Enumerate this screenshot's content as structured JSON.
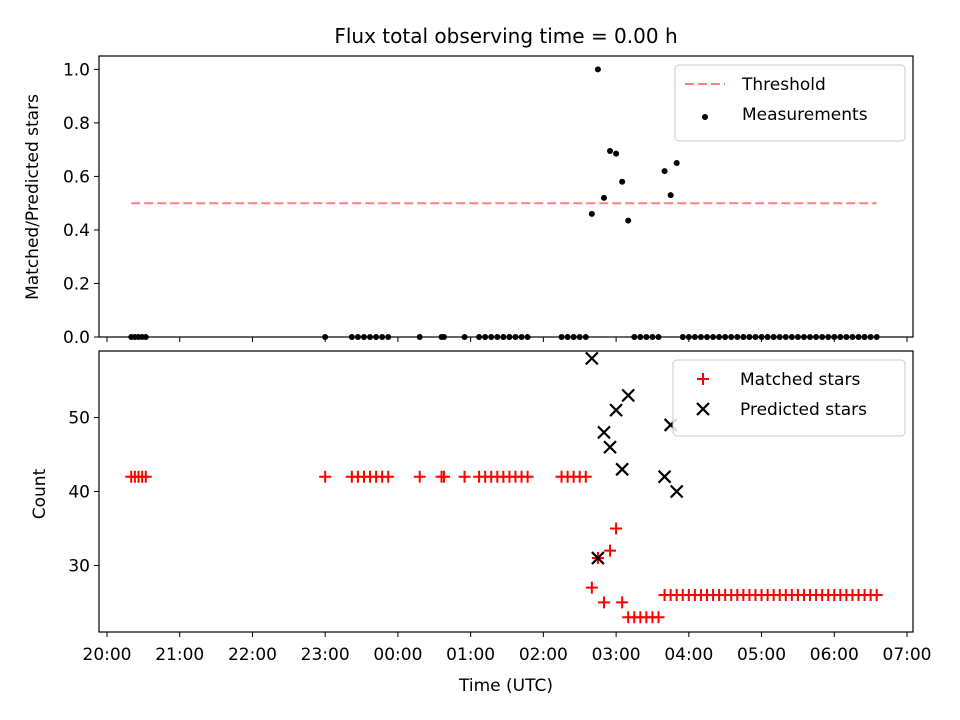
{
  "chart_data": [
    {
      "type": "scatter",
      "title": "Flux total observing time = 0.00 h",
      "xlabel": "",
      "ylabel": "Matched/Predicted stars",
      "xlim": [
        "20:00",
        "07:00"
      ],
      "ylim": [
        0,
        1.05
      ],
      "yticks": [
        "0.0",
        "0.2",
        "0.4",
        "0.6",
        "0.8",
        "1.0"
      ],
      "legend_position": "top-right",
      "threshold": {
        "name": "Threshold",
        "value": 0.5,
        "x_start": "20:20",
        "x_end": "06:35",
        "color": "#ff7f7f",
        "style": "dashed"
      },
      "series": [
        {
          "name": "Measurements",
          "color": "#000000",
          "marker": "dot",
          "points": [
            [
              "20:20",
              0.0
            ],
            [
              "20:23",
              0.0
            ],
            [
              "20:26",
              0.0
            ],
            [
              "20:29",
              0.0
            ],
            [
              "20:32",
              0.0
            ],
            [
              "23:00",
              0.0
            ],
            [
              "23:22",
              0.0
            ],
            [
              "23:27",
              0.0
            ],
            [
              "23:32",
              0.0
            ],
            [
              "23:37",
              0.0
            ],
            [
              "23:42",
              0.0
            ],
            [
              "23:47",
              0.0
            ],
            [
              "23:52",
              0.0
            ],
            [
              "00:18",
              0.0
            ],
            [
              "00:36",
              0.0
            ],
            [
              "00:38",
              0.0
            ],
            [
              "00:55",
              0.0
            ],
            [
              "01:07",
              0.0
            ],
            [
              "01:12",
              0.0
            ],
            [
              "01:17",
              0.0
            ],
            [
              "01:22",
              0.0
            ],
            [
              "01:27",
              0.0
            ],
            [
              "01:32",
              0.0
            ],
            [
              "01:37",
              0.0
            ],
            [
              "01:42",
              0.0
            ],
            [
              "01:47",
              0.0
            ],
            [
              "02:15",
              0.0
            ],
            [
              "02:20",
              0.0
            ],
            [
              "02:25",
              0.0
            ],
            [
              "02:30",
              0.0
            ],
            [
              "02:35",
              0.0
            ],
            [
              "02:40",
              0.46
            ],
            [
              "02:45",
              1.0
            ],
            [
              "02:50",
              0.52
            ],
            [
              "02:55",
              0.695
            ],
            [
              "03:00",
              0.685
            ],
            [
              "03:05",
              0.58
            ],
            [
              "03:10",
              0.435
            ],
            [
              "03:15",
              0.0
            ],
            [
              "03:20",
              0.0
            ],
            [
              "03:25",
              0.0
            ],
            [
              "03:30",
              0.0
            ],
            [
              "03:35",
              0.0
            ],
            [
              "03:40",
              0.62
            ],
            [
              "03:45",
              0.53
            ],
            [
              "03:50",
              0.65
            ],
            [
              "03:55",
              0.0
            ],
            [
              "04:00",
              0.0
            ],
            [
              "04:05",
              0.0
            ],
            [
              "04:10",
              0.0
            ],
            [
              "04:15",
              0.0
            ],
            [
              "04:20",
              0.0
            ],
            [
              "04:25",
              0.0
            ],
            [
              "04:30",
              0.0
            ],
            [
              "04:35",
              0.0
            ],
            [
              "04:40",
              0.0
            ],
            [
              "04:45",
              0.0
            ],
            [
              "04:50",
              0.0
            ],
            [
              "04:55",
              0.0
            ],
            [
              "05:00",
              0.0
            ],
            [
              "05:05",
              0.0
            ],
            [
              "05:10",
              0.0
            ],
            [
              "05:15",
              0.0
            ],
            [
              "05:20",
              0.0
            ],
            [
              "05:25",
              0.0
            ],
            [
              "05:30",
              0.0
            ],
            [
              "05:35",
              0.0
            ],
            [
              "05:40",
              0.0
            ],
            [
              "05:45",
              0.0
            ],
            [
              "05:50",
              0.0
            ],
            [
              "05:55",
              0.0
            ],
            [
              "06:00",
              0.0
            ],
            [
              "06:05",
              0.0
            ],
            [
              "06:10",
              0.0
            ],
            [
              "06:15",
              0.0
            ],
            [
              "06:20",
              0.0
            ],
            [
              "06:25",
              0.0
            ],
            [
              "06:30",
              0.0
            ],
            [
              "06:35",
              0.0
            ]
          ]
        }
      ]
    },
    {
      "type": "scatter",
      "title": "",
      "xlabel": "Time (UTC)",
      "ylabel": "Count",
      "xlim": [
        "20:00",
        "07:00"
      ],
      "ylim": [
        21,
        59
      ],
      "yticks": [
        "30",
        "40",
        "50"
      ],
      "xticks": [
        "20:00",
        "21:00",
        "22:00",
        "23:00",
        "00:00",
        "01:00",
        "02:00",
        "03:00",
        "04:00",
        "05:00",
        "06:00",
        "07:00"
      ],
      "legend_position": "top-right",
      "series": [
        {
          "name": "Matched stars",
          "color": "#ff0000",
          "marker": "plus",
          "points": [
            [
              "20:20",
              42
            ],
            [
              "20:23",
              42
            ],
            [
              "20:26",
              42
            ],
            [
              "20:29",
              42
            ],
            [
              "20:32",
              42
            ],
            [
              "23:00",
              42
            ],
            [
              "23:22",
              42
            ],
            [
              "23:27",
              42
            ],
            [
              "23:32",
              42
            ],
            [
              "23:37",
              42
            ],
            [
              "23:42",
              42
            ],
            [
              "23:47",
              42
            ],
            [
              "23:52",
              42
            ],
            [
              "00:18",
              42
            ],
            [
              "00:36",
              42
            ],
            [
              "00:38",
              42
            ],
            [
              "00:55",
              42
            ],
            [
              "01:07",
              42
            ],
            [
              "01:12",
              42
            ],
            [
              "01:17",
              42
            ],
            [
              "01:22",
              42
            ],
            [
              "01:27",
              42
            ],
            [
              "01:32",
              42
            ],
            [
              "01:37",
              42
            ],
            [
              "01:42",
              42
            ],
            [
              "01:47",
              42
            ],
            [
              "02:15",
              42
            ],
            [
              "02:20",
              42
            ],
            [
              "02:25",
              42
            ],
            [
              "02:30",
              42
            ],
            [
              "02:35",
              42
            ],
            [
              "02:40",
              27
            ],
            [
              "02:45",
              31
            ],
            [
              "02:50",
              25
            ],
            [
              "02:55",
              32
            ],
            [
              "03:00",
              35
            ],
            [
              "03:05",
              25
            ],
            [
              "03:10",
              23
            ],
            [
              "03:15",
              23
            ],
            [
              "03:20",
              23
            ],
            [
              "03:25",
              23
            ],
            [
              "03:30",
              23
            ],
            [
              "03:35",
              23
            ],
            [
              "03:40",
              26
            ],
            [
              "03:45",
              26
            ],
            [
              "03:50",
              26
            ],
            [
              "03:55",
              26
            ],
            [
              "04:00",
              26
            ],
            [
              "04:05",
              26
            ],
            [
              "04:10",
              26
            ],
            [
              "04:15",
              26
            ],
            [
              "04:20",
              26
            ],
            [
              "04:25",
              26
            ],
            [
              "04:30",
              26
            ],
            [
              "04:35",
              26
            ],
            [
              "04:40",
              26
            ],
            [
              "04:45",
              26
            ],
            [
              "04:50",
              26
            ],
            [
              "04:55",
              26
            ],
            [
              "05:00",
              26
            ],
            [
              "05:05",
              26
            ],
            [
              "05:10",
              26
            ],
            [
              "05:15",
              26
            ],
            [
              "05:20",
              26
            ],
            [
              "05:25",
              26
            ],
            [
              "05:30",
              26
            ],
            [
              "05:35",
              26
            ],
            [
              "05:40",
              26
            ],
            [
              "05:45",
              26
            ],
            [
              "05:50",
              26
            ],
            [
              "05:55",
              26
            ],
            [
              "06:00",
              26
            ],
            [
              "06:05",
              26
            ],
            [
              "06:10",
              26
            ],
            [
              "06:15",
              26
            ],
            [
              "06:20",
              26
            ],
            [
              "06:25",
              26
            ],
            [
              "06:30",
              26
            ],
            [
              "06:35",
              26
            ]
          ]
        },
        {
          "name": "Predicted stars",
          "color": "#000000",
          "marker": "x",
          "points": [
            [
              "02:40",
              58
            ],
            [
              "02:45",
              31
            ],
            [
              "02:50",
              48
            ],
            [
              "02:55",
              46
            ],
            [
              "03:00",
              51
            ],
            [
              "03:05",
              43
            ],
            [
              "03:10",
              53
            ],
            [
              "03:40",
              42
            ],
            [
              "03:45",
              49
            ],
            [
              "03:50",
              40
            ]
          ]
        }
      ]
    }
  ]
}
